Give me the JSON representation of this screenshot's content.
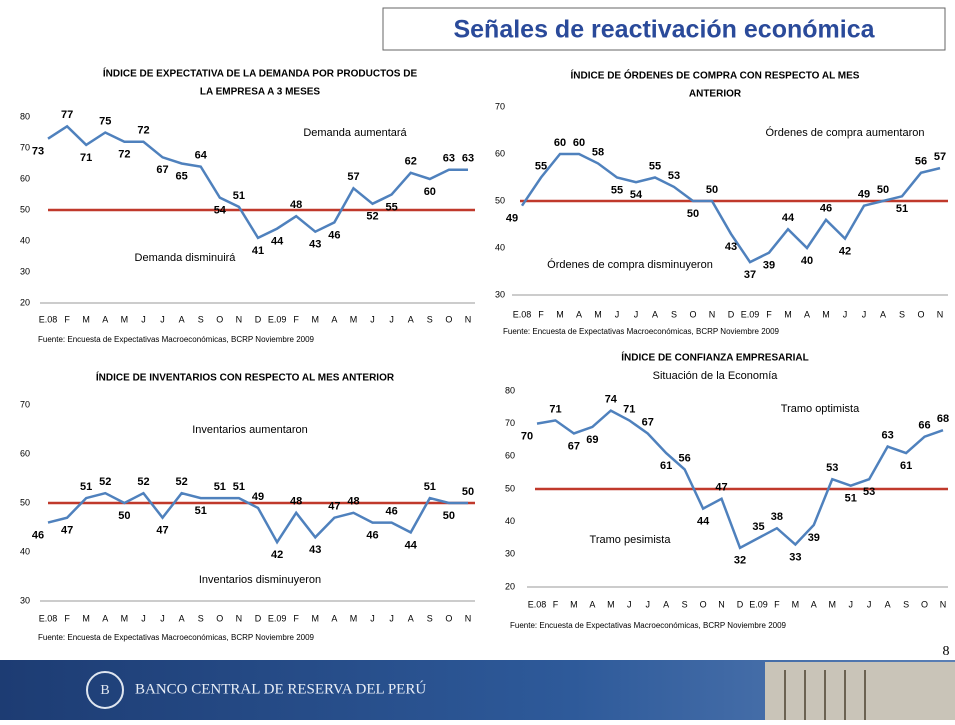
{
  "header": {
    "title": "Señales de reactivación económica",
    "page_number": "8"
  },
  "footer": {
    "bank_name": "BANCO CENTRAL DE RESERVA DEL PERÚ"
  },
  "chart_data": [
    {
      "type": "line",
      "title": [
        "ÍNDICE DE EXPECTATIVA  DE LA DEMANDA POR PRODUCTOS DE",
        "LA EMPRESA A 3 MESES"
      ],
      "categories": [
        "E.08",
        "F",
        "M",
        "A",
        "M",
        "J",
        "J",
        "A",
        "S",
        "O",
        "N",
        "D",
        "E.09",
        "F",
        "M",
        "A",
        "M",
        "J",
        "J",
        "A",
        "S",
        "O",
        "N"
      ],
      "values": [
        73,
        77,
        71,
        75,
        72,
        72,
        67,
        65,
        64,
        54,
        51,
        41,
        44,
        48,
        43,
        46,
        57,
        52,
        55,
        62,
        60,
        63,
        63
      ],
      "color": "#4f81bd",
      "ylim": [
        20,
        80
      ],
      "yticks": [
        20,
        30,
        40,
        50,
        60,
        70,
        80
      ],
      "reference_line": {
        "value": 50,
        "color": "#c0392b"
      },
      "annotations": [
        "Demanda aumentará",
        "Demanda disminuirá"
      ],
      "source": "Fuente: Encuesta de Expectativas Macroeconómicas, BCRP Noviembre 2009"
    },
    {
      "type": "line",
      "title": [
        "ÍNDICE DE ÓRDENES DE COMPRA CON RESPECTO AL MES",
        "ANTERIOR"
      ],
      "categories": [
        "E.08",
        "F",
        "M",
        "A",
        "M",
        "J",
        "J",
        "A",
        "S",
        "O",
        "N",
        "D",
        "E.09",
        "F",
        "M",
        "A",
        "M",
        "J",
        "J",
        "A",
        "S",
        "O",
        "N"
      ],
      "values": [
        49,
        55,
        60,
        60,
        58,
        55,
        54,
        55,
        53,
        50,
        50,
        43,
        37,
        39,
        44,
        40,
        46,
        42,
        49,
        50,
        51,
        56,
        57
      ],
      "color": "#4f81bd",
      "ylim": [
        30,
        70
      ],
      "yticks": [
        30,
        40,
        50,
        60,
        70
      ],
      "reference_line": {
        "value": 50,
        "color": "#c0392b"
      },
      "annotations": [
        "Órdenes de compra aumentaron",
        "Órdenes de compra disminuyeron"
      ],
      "source": "Fuente: Encuesta de Expectativas Macroeconómicas, BCRP Noviembre 2009"
    },
    {
      "type": "line",
      "title": [
        "ÍNDICE DE INVENTARIOS CON RESPECTO AL MES ANTERIOR"
      ],
      "categories": [
        "E.08",
        "F",
        "M",
        "A",
        "M",
        "J",
        "J",
        "A",
        "S",
        "O",
        "N",
        "D",
        "E.09",
        "F",
        "M",
        "A",
        "M",
        "J",
        "J",
        "A",
        "S",
        "O",
        "N"
      ],
      "values": [
        46,
        47,
        51,
        52,
        50,
        52,
        47,
        52,
        51,
        51,
        51,
        49,
        42,
        48,
        43,
        47,
        48,
        46,
        46,
        44,
        51,
        50,
        50
      ],
      "color": "#4f81bd",
      "ylim": [
        30,
        70
      ],
      "yticks": [
        30,
        40,
        50,
        60,
        70
      ],
      "reference_line": {
        "value": 50,
        "color": "#c0392b"
      },
      "annotations": [
        "Inventarios aumentaron",
        "Inventarios disminuyeron"
      ],
      "source": "Fuente: Encuesta de Expectativas Macroeconómicas, BCRP Noviembre 2009"
    },
    {
      "type": "line",
      "title": [
        "ÍNDICE DE CONFIANZA EMPRESARIAL"
      ],
      "subtitle": "Situación de la Economía",
      "categories": [
        "E.08",
        "F",
        "M",
        "A",
        "M",
        "J",
        "J",
        "A",
        "S",
        "O",
        "N",
        "D",
        "E.09",
        "F",
        "M",
        "A",
        "M",
        "J",
        "J",
        "A",
        "S",
        "O",
        "N"
      ],
      "values": [
        70,
        71,
        67,
        69,
        74,
        71,
        67,
        61,
        56,
        44,
        47,
        32,
        35,
        38,
        33,
        39,
        53,
        51,
        53,
        63,
        61,
        66,
        68
      ],
      "color": "#4f81bd",
      "ylim": [
        20,
        80
      ],
      "yticks": [
        20,
        30,
        40,
        50,
        60,
        70,
        80
      ],
      "reference_line": {
        "value": 50,
        "color": "#c0392b"
      },
      "annotations": [
        "Tramo optimista",
        "Tramo pesimista"
      ],
      "source": "Fuente: Encuesta de Expectativas Macroeconómicas, BCRP Noviembre 2009"
    }
  ]
}
